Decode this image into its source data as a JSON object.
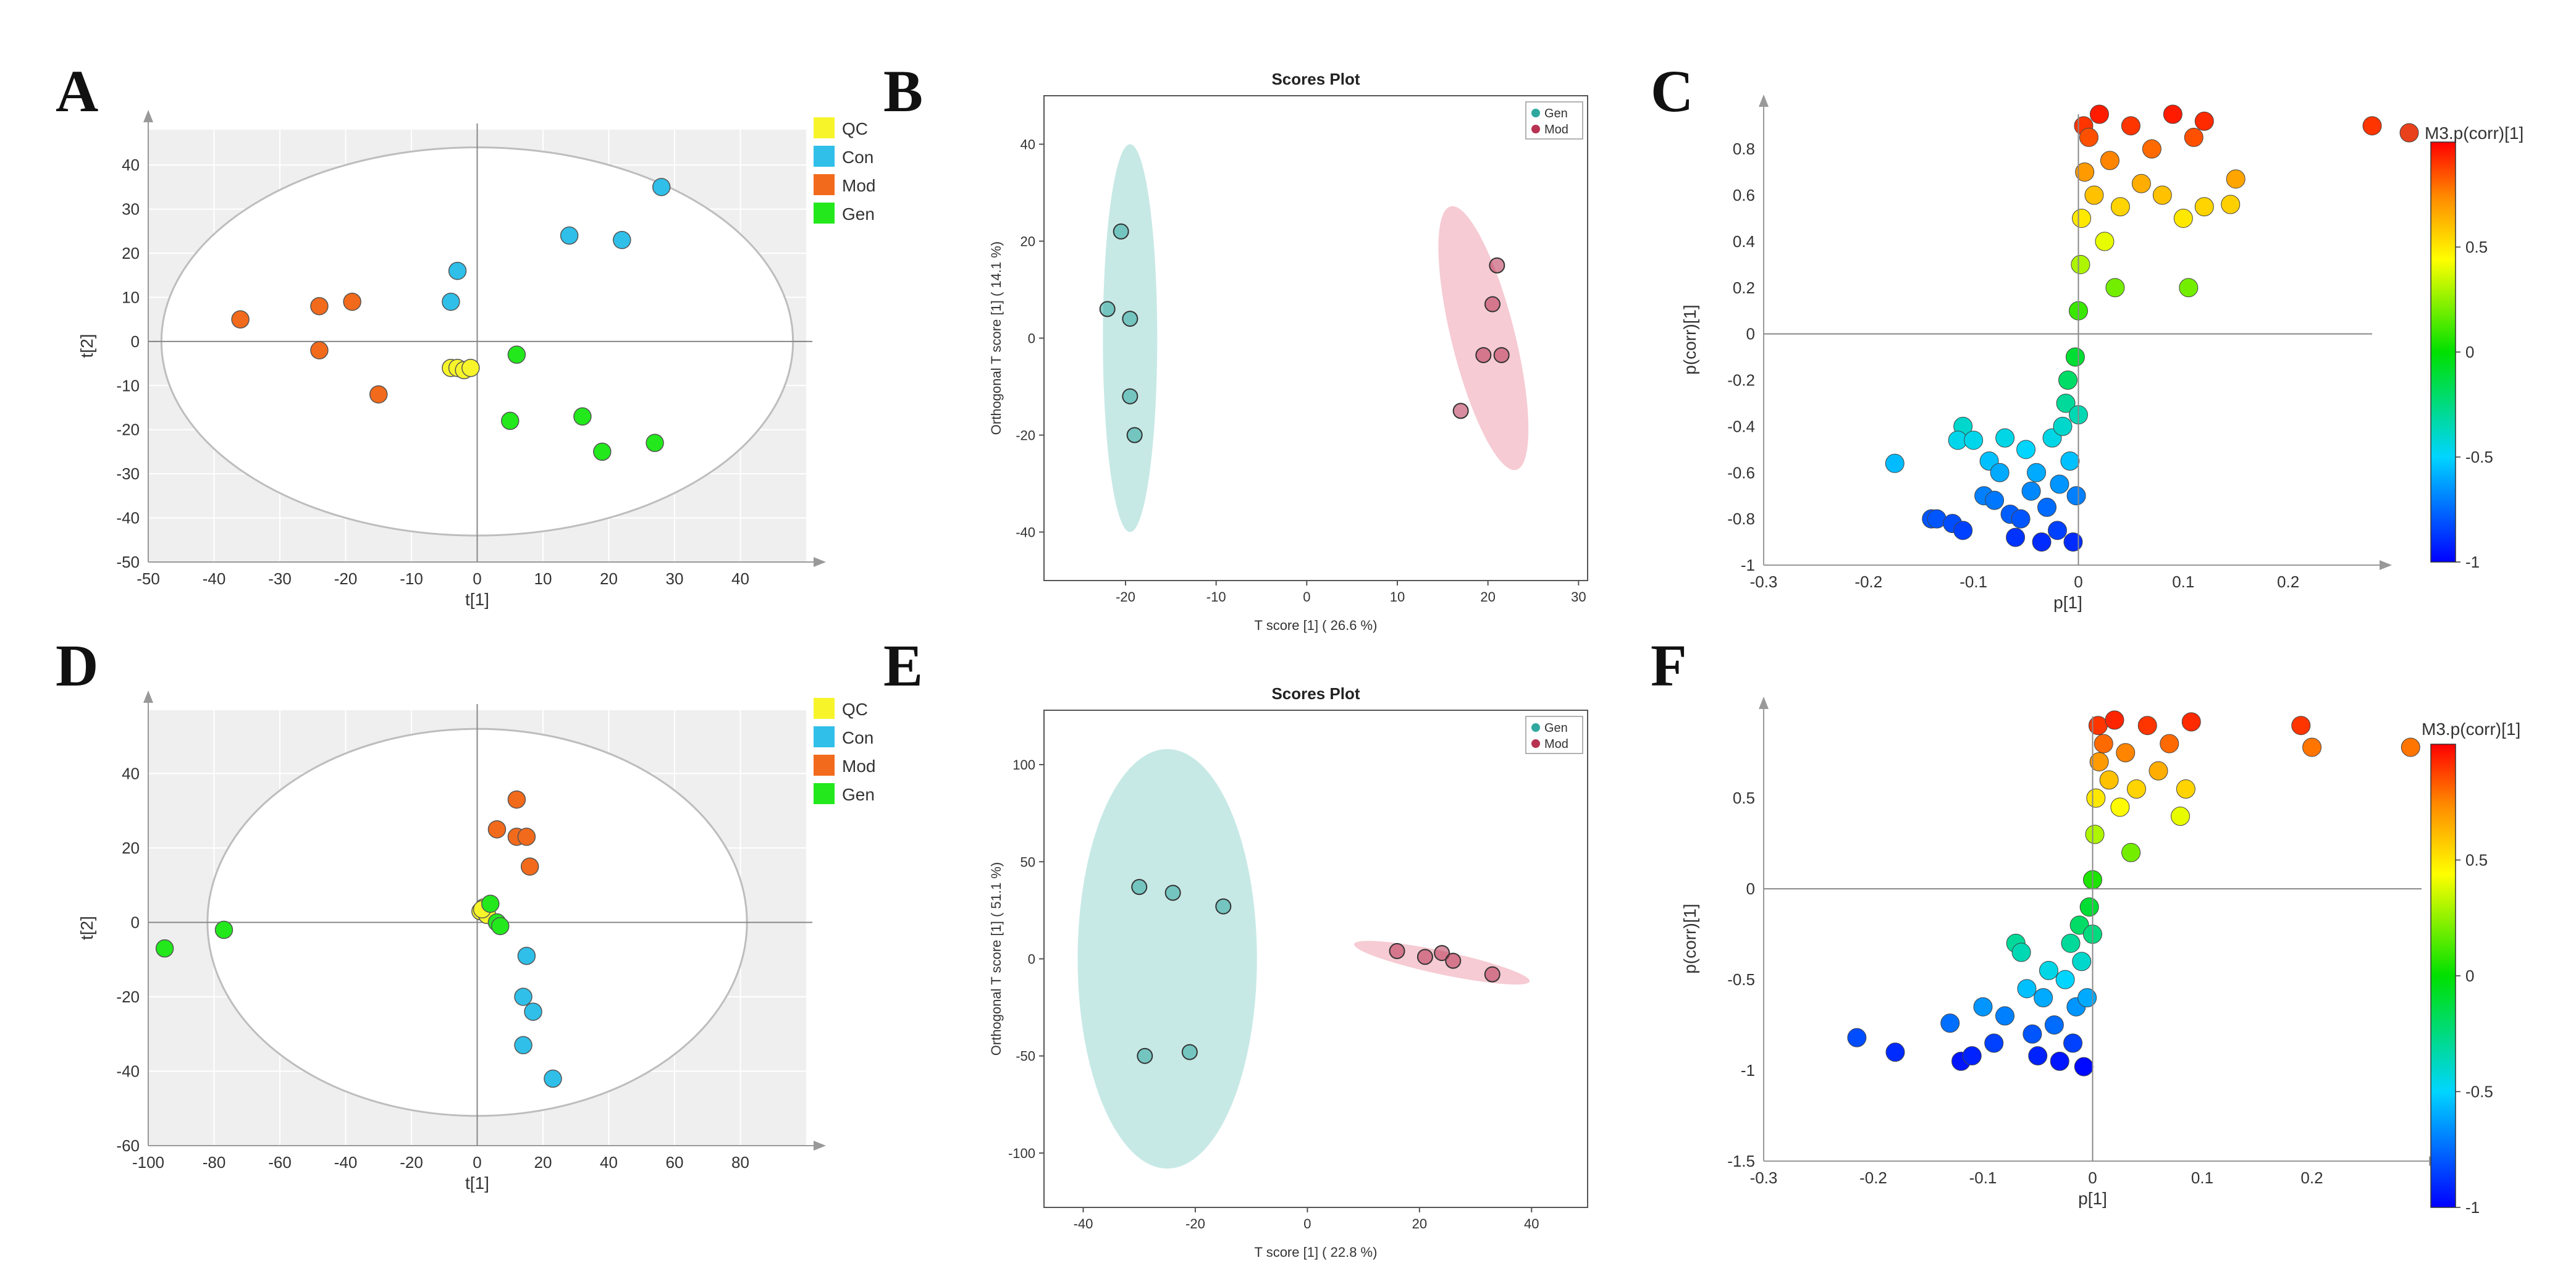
{
  "panel_letters": {
    "A": "A",
    "B": "B",
    "C": "C",
    "D": "D",
    "E": "E",
    "F": "F"
  },
  "chart_data": [
    {
      "id": "A",
      "type": "scatter",
      "title": "",
      "xlabel": "t[1]",
      "ylabel": "t[2]",
      "xlim": [
        -50,
        50
      ],
      "ylim": [
        -50,
        48
      ],
      "xticks": [
        -50,
        -40,
        -30,
        -20,
        -10,
        0,
        10,
        20,
        30,
        40
      ],
      "yticks": [
        -50,
        -40,
        -30,
        -20,
        -10,
        0,
        10,
        20,
        30,
        40
      ],
      "ellipse": {
        "cx": 0,
        "cy": 0,
        "rx": 48,
        "ry": 44
      },
      "legend": [
        "QC",
        "Con",
        "Mod",
        "Gen"
      ],
      "colors": {
        "QC": "#f7f52a",
        "Con": "#2fbfe8",
        "Mod": "#f26a1b",
        "Gen": "#22e81c"
      },
      "series": [
        {
          "name": "QC",
          "points": [
            [
              -4,
              -6
            ],
            [
              -3,
              -6
            ],
            [
              -2,
              -6.5
            ],
            [
              -1,
              -6
            ]
          ]
        },
        {
          "name": "Con",
          "points": [
            [
              -4,
              9
            ],
            [
              -3,
              16
            ],
            [
              14,
              24
            ],
            [
              22,
              23
            ],
            [
              28,
              35
            ]
          ]
        },
        {
          "name": "Mod",
          "points": [
            [
              -36,
              5
            ],
            [
              -24,
              8
            ],
            [
              -19,
              9
            ],
            [
              -24,
              -2
            ],
            [
              -15,
              -12
            ]
          ]
        },
        {
          "name": "Gen",
          "points": [
            [
              6,
              -3
            ],
            [
              5,
              -18
            ],
            [
              16,
              -17
            ],
            [
              19,
              -25
            ],
            [
              27,
              -23
            ]
          ]
        }
      ]
    },
    {
      "id": "B",
      "type": "scatter",
      "title": "Scores Plot",
      "xlabel": "T score [1] ( 26.6 %)",
      "ylabel": "Orthogonal T score [1] ( 14.1 %)",
      "xlim": [
        -29,
        31
      ],
      "ylim": [
        -50,
        50
      ],
      "xticks": [
        -20,
        -10,
        0,
        10,
        20,
        30
      ],
      "yticks": [
        -40,
        -20,
        0,
        20,
        40
      ],
      "legend": [
        "Gen",
        "Mod"
      ],
      "colors": {
        "Gen": "#2fa8a0",
        "Mod": "#b83252"
      },
      "ellipses": [
        {
          "name": "Gen",
          "cx": -19.5,
          "cy": 0,
          "rx": 3,
          "ry": 40,
          "fill": "#c7e9e6"
        },
        {
          "name": "Mod",
          "cx": 19.5,
          "cy": 0,
          "rx": 3.5,
          "ry": 28,
          "fill": "#f6cbd3",
          "angle": -14
        }
      ],
      "series": [
        {
          "name": "Gen",
          "points": [
            [
              -20.5,
              22
            ],
            [
              -22,
              6
            ],
            [
              -19.5,
              4
            ],
            [
              -19.5,
              -12
            ],
            [
              -19,
              -20
            ]
          ]
        },
        {
          "name": "Mod",
          "points": [
            [
              21,
              15
            ],
            [
              20.5,
              7
            ],
            [
              19.5,
              -3.5
            ],
            [
              21.5,
              -3.5
            ],
            [
              17,
              -15
            ]
          ]
        }
      ]
    },
    {
      "id": "C",
      "type": "scatter",
      "title": "",
      "xlabel": "p[1]",
      "ylabel": "p(corr)[1]",
      "xlim": [
        -0.3,
        0.28
      ],
      "ylim": [
        -1,
        0.95
      ],
      "xticks": [
        -0.3,
        -0.2,
        -0.1,
        0,
        0.1,
        0.2
      ],
      "yticks": [
        -1,
        -0.8,
        -0.6,
        -0.4,
        -0.2,
        0,
        0.2,
        0.4,
        0.6,
        0.8
      ],
      "colorbar": {
        "title": "M3.p(corr)[1]",
        "min": -1,
        "max": 1,
        "ticks": [
          -1,
          -0.5,
          0,
          0.5
        ]
      },
      "series": [
        {
          "name": "variables",
          "points": [
            [
              -0.175,
              -0.56
            ],
            [
              -0.14,
              -0.8
            ],
            [
              -0.135,
              -0.8
            ],
            [
              -0.12,
              -0.82
            ],
            [
              -0.11,
              -0.85
            ],
            [
              -0.11,
              -0.4
            ],
            [
              -0.115,
              -0.46
            ],
            [
              -0.1,
              -0.46
            ],
            [
              -0.09,
              -0.7
            ],
            [
              -0.08,
              -0.72
            ],
            [
              -0.085,
              -0.55
            ],
            [
              -0.075,
              -0.6
            ],
            [
              -0.07,
              -0.45
            ],
            [
              -0.065,
              -0.78
            ],
            [
              -0.06,
              -0.88
            ],
            [
              -0.055,
              -0.8
            ],
            [
              -0.05,
              -0.5
            ],
            [
              -0.045,
              -0.68
            ],
            [
              -0.04,
              -0.6
            ],
            [
              -0.035,
              -0.9
            ],
            [
              -0.03,
              -0.75
            ],
            [
              -0.025,
              -0.45
            ],
            [
              -0.02,
              -0.85
            ],
            [
              -0.018,
              -0.65
            ],
            [
              -0.015,
              -0.4
            ],
            [
              -0.012,
              -0.3
            ],
            [
              -0.01,
              -0.2
            ],
            [
              -0.008,
              -0.55
            ],
            [
              -0.005,
              -0.9
            ],
            [
              -0.003,
              -0.1
            ],
            [
              -0.002,
              -0.7
            ],
            [
              0,
              -0.35
            ],
            [
              0,
              0.1
            ],
            [
              0.002,
              0.3
            ],
            [
              0.003,
              0.5
            ],
            [
              0.005,
              0.9
            ],
            [
              0.006,
              0.7
            ],
            [
              0.01,
              0.85
            ],
            [
              0.015,
              0.6
            ],
            [
              0.02,
              0.95
            ],
            [
              0.025,
              0.4
            ],
            [
              0.03,
              0.75
            ],
            [
              0.035,
              0.2
            ],
            [
              0.04,
              0.55
            ],
            [
              0.05,
              0.9
            ],
            [
              0.06,
              0.65
            ],
            [
              0.07,
              0.8
            ],
            [
              0.08,
              0.6
            ],
            [
              0.09,
              0.95
            ],
            [
              0.1,
              0.5
            ],
            [
              0.11,
              0.85
            ],
            [
              0.12,
              0.92
            ],
            [
              0.105,
              0.2
            ],
            [
              0.12,
              0.55
            ],
            [
              0.15,
              0.67
            ],
            [
              0.145,
              0.56
            ],
            [
              0.28,
              0.9
            ]
          ]
        }
      ]
    },
    {
      "id": "D",
      "type": "scatter",
      "title": "",
      "xlabel": "t[1]",
      "ylabel": "t[2]",
      "xlim": [
        -100,
        100
      ],
      "ylim": [
        -60,
        57
      ],
      "xticks": [
        -100,
        -80,
        -60,
        -40,
        -20,
        0,
        20,
        40,
        60,
        80
      ],
      "yticks": [
        -60,
        -40,
        -20,
        0,
        20,
        40
      ],
      "ellipse": {
        "cx": 0,
        "cy": 0,
        "rx": 82,
        "ry": 52
      },
      "legend": [
        "QC",
        "Con",
        "Mod",
        "Gen"
      ],
      "colors": {
        "QC": "#f7f52a",
        "Con": "#2fbfe8",
        "Mod": "#f26a1b",
        "Gen": "#22e81c"
      },
      "series": [
        {
          "name": "QC",
          "points": [
            [
              1,
              3
            ],
            [
              2,
              4
            ],
            [
              3,
              2
            ],
            [
              1.5,
              3.5
            ]
          ]
        },
        {
          "name": "Con",
          "points": [
            [
              15,
              -9
            ],
            [
              14,
              -20
            ],
            [
              17,
              -24
            ],
            [
              14,
              -33
            ],
            [
              23,
              -42
            ]
          ]
        },
        {
          "name": "Mod",
          "points": [
            [
              6,
              25
            ],
            [
              12,
              33
            ],
            [
              12,
              23
            ],
            [
              15,
              23
            ],
            [
              16,
              15
            ]
          ]
        },
        {
          "name": "Gen",
          "points": [
            [
              -95,
              -7
            ],
            [
              -77,
              -2
            ],
            [
              4,
              5
            ],
            [
              6,
              0
            ],
            [
              7,
              -1
            ]
          ]
        }
      ]
    },
    {
      "id": "E",
      "type": "scatter",
      "title": "Scores Plot",
      "xlabel": "T score [1] ( 22.8 %)",
      "ylabel": "Orthogonal T score [1] ( 51.1 %)",
      "xlim": [
        -47,
        50
      ],
      "ylim": [
        -128,
        128
      ],
      "xticks": [
        -40,
        -20,
        0,
        20,
        40
      ],
      "yticks": [
        -100,
        -50,
        0,
        50,
        100
      ],
      "legend": [
        "Gen",
        "Mod"
      ],
      "colors": {
        "Gen": "#2fa8a0",
        "Mod": "#b83252"
      },
      "ellipses": [
        {
          "name": "Gen",
          "cx": -25,
          "cy": 0,
          "rx": 16,
          "ry": 108,
          "fill": "#c7e9e6"
        },
        {
          "name": "Mod",
          "cx": 24,
          "cy": -2,
          "rx": 16,
          "ry": 6,
          "fill": "#f6cbd3",
          "angle": 12
        }
      ],
      "series": [
        {
          "name": "Gen",
          "points": [
            [
              -30,
              37
            ],
            [
              -24,
              34
            ],
            [
              -15,
              27
            ],
            [
              -29,
              -50
            ],
            [
              -21,
              -48
            ]
          ]
        },
        {
          "name": "Mod",
          "points": [
            [
              16,
              4
            ],
            [
              21,
              1
            ],
            [
              24,
              3
            ],
            [
              26,
              -1
            ],
            [
              33,
              -8
            ]
          ]
        }
      ]
    },
    {
      "id": "F",
      "type": "scatter",
      "title": "",
      "xlabel": "p[1]",
      "ylabel": "p(corr)[1]",
      "xlim": [
        -0.3,
        0.3
      ],
      "ylim": [
        -1.5,
        0.95
      ],
      "xticks": [
        -0.3,
        -0.2,
        -0.1,
        0,
        0.1,
        0.2
      ],
      "yticks": [
        -1.5,
        -1,
        -0.5,
        0,
        0.5
      ],
      "colorbar": {
        "title": "M3.p(corr)[1]",
        "min": -1,
        "max": 1,
        "ticks": [
          -1,
          -0.5,
          0,
          0.5
        ]
      },
      "series": [
        {
          "name": "variables",
          "points": [
            [
              -0.215,
              -0.82
            ],
            [
              -0.18,
              -0.9
            ],
            [
              -0.13,
              -0.74
            ],
            [
              -0.12,
              -0.95
            ],
            [
              -0.11,
              -0.92
            ],
            [
              -0.1,
              -0.65
            ],
            [
              -0.09,
              -0.85
            ],
            [
              -0.08,
              -0.7
            ],
            [
              -0.07,
              -0.3
            ],
            [
              -0.065,
              -0.35
            ],
            [
              -0.06,
              -0.55
            ],
            [
              -0.055,
              -0.8
            ],
            [
              -0.05,
              -0.92
            ],
            [
              -0.045,
              -0.6
            ],
            [
              -0.04,
              -0.45
            ],
            [
              -0.035,
              -0.75
            ],
            [
              -0.03,
              -0.95
            ],
            [
              -0.025,
              -0.5
            ],
            [
              -0.02,
              -0.3
            ],
            [
              -0.018,
              -0.85
            ],
            [
              -0.015,
              -0.65
            ],
            [
              -0.012,
              -0.2
            ],
            [
              -0.01,
              -0.4
            ],
            [
              -0.008,
              -0.98
            ],
            [
              -0.005,
              -0.6
            ],
            [
              -0.003,
              -0.1
            ],
            [
              0,
              -0.25
            ],
            [
              0,
              0.05
            ],
            [
              0.002,
              0.3
            ],
            [
              0.003,
              0.5
            ],
            [
              0.005,
              0.9
            ],
            [
              0.006,
              0.7
            ],
            [
              0.01,
              0.8
            ],
            [
              0.015,
              0.6
            ],
            [
              0.02,
              0.93
            ],
            [
              0.025,
              0.45
            ],
            [
              0.03,
              0.75
            ],
            [
              0.035,
              0.2
            ],
            [
              0.04,
              0.55
            ],
            [
              0.05,
              0.9
            ],
            [
              0.06,
              0.65
            ],
            [
              0.07,
              0.8
            ],
            [
              0.08,
              0.4
            ],
            [
              0.085,
              0.55
            ],
            [
              0.09,
              0.92
            ],
            [
              0.19,
              0.9
            ],
            [
              0.2,
              0.78
            ],
            [
              0.29,
              0.78
            ]
          ]
        }
      ]
    }
  ]
}
